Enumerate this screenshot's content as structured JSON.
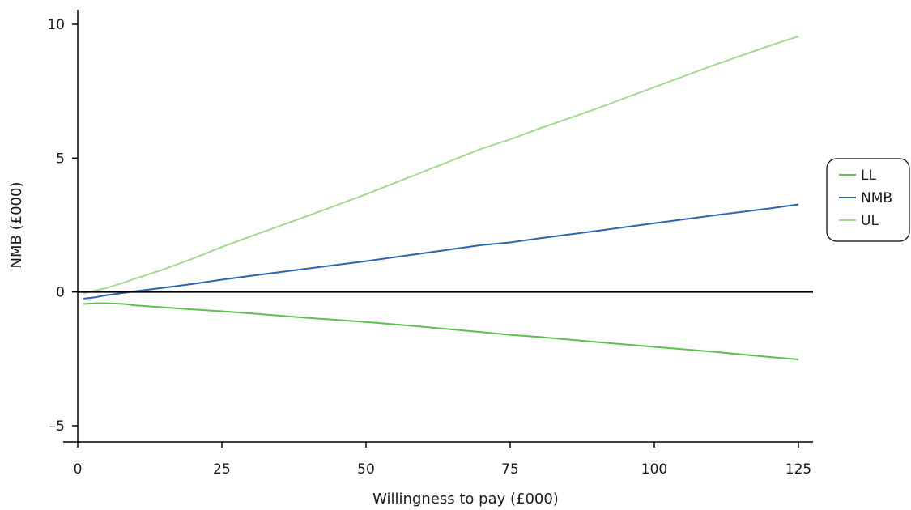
{
  "chart_data": {
    "type": "line",
    "title": "",
    "xlabel": "Willingness to pay (£000)",
    "ylabel": "NMB (£000)",
    "xlim": [
      0,
      125
    ],
    "ylim": [
      -5,
      10
    ],
    "x_ticks": [
      0,
      25,
      50,
      75,
      100,
      125
    ],
    "x_tick_labels": [
      "0",
      "25",
      "50",
      "75",
      "100",
      "125"
    ],
    "y_ticks": [
      -5,
      0,
      5,
      10
    ],
    "y_tick_labels": [
      "–5",
      "0",
      "5",
      "10"
    ],
    "grid": false,
    "reference_lines": [
      {
        "axis": "y",
        "value": 0
      }
    ],
    "legend": {
      "position": "right",
      "framed": true
    },
    "series": [
      {
        "name": "LL",
        "color": "#5cbf4e",
        "x": [
          1,
          3,
          5,
          8,
          10,
          15,
          20,
          25,
          30,
          40,
          50,
          60,
          70,
          75,
          80,
          90,
          100,
          110,
          120,
          125
        ],
        "values": [
          -0.45,
          -0.42,
          -0.42,
          -0.45,
          -0.5,
          -0.58,
          -0.65,
          -0.72,
          -0.8,
          -0.97,
          -1.12,
          -1.3,
          -1.5,
          -1.6,
          -1.68,
          -1.87,
          -2.05,
          -2.23,
          -2.43,
          -2.52
        ]
      },
      {
        "name": "NMB",
        "color": "#2e64ad",
        "x": [
          1,
          3,
          5,
          8,
          10,
          15,
          20,
          25,
          30,
          40,
          50,
          60,
          70,
          75,
          80,
          90,
          100,
          110,
          120,
          125
        ],
        "values": [
          -0.25,
          -0.2,
          -0.12,
          -0.03,
          0.03,
          0.16,
          0.3,
          0.46,
          0.6,
          0.88,
          1.15,
          1.45,
          1.75,
          1.85,
          2.0,
          2.28,
          2.57,
          2.85,
          3.12,
          3.27
        ]
      },
      {
        "name": "UL",
        "color": "#a3d993",
        "x": [
          1,
          3,
          5,
          8,
          10,
          15,
          20,
          25,
          30,
          40,
          50,
          60,
          70,
          75,
          80,
          90,
          100,
          110,
          120,
          125
        ],
        "values": [
          -0.05,
          0.05,
          0.15,
          0.35,
          0.5,
          0.85,
          1.25,
          1.68,
          2.08,
          2.85,
          3.65,
          4.5,
          5.35,
          5.7,
          6.1,
          6.85,
          7.65,
          8.45,
          9.2,
          9.55
        ]
      }
    ]
  }
}
